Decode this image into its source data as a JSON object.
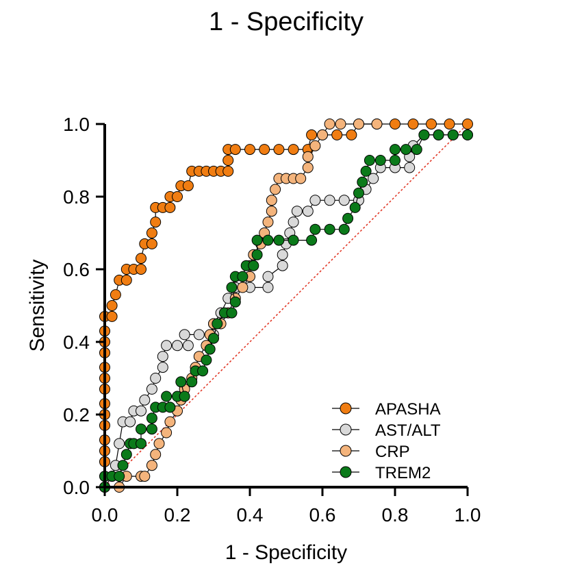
{
  "chart_data": {
    "type": "line",
    "title": "1 - Specificity",
    "xlabel": "1 - Specificity",
    "ylabel": "Sensitivity",
    "xlim": [
      0,
      1
    ],
    "ylim": [
      0,
      1
    ],
    "x_ticks": [
      "0.0",
      "0.2",
      "0.4",
      "0.6",
      "0.8",
      "1.0"
    ],
    "y_ticks": [
      "0.0",
      "0.2",
      "0.4",
      "0.6",
      "0.8",
      "1.0"
    ],
    "grid": false,
    "legend_position": "bottom-right",
    "reference_line": {
      "from": [
        0,
        0
      ],
      "to": [
        1,
        1
      ],
      "color": "#e0301e",
      "style": "dotted"
    },
    "series": [
      {
        "name": "APASHA",
        "color": "#f07d12",
        "points": [
          [
            0,
            0
          ],
          [
            0,
            0.03
          ],
          [
            0,
            0.07
          ],
          [
            0,
            0.1
          ],
          [
            0,
            0.13
          ],
          [
            0,
            0.17
          ],
          [
            0,
            0.2
          ],
          [
            0,
            0.23
          ],
          [
            0,
            0.27
          ],
          [
            0,
            0.3
          ],
          [
            0,
            0.33
          ],
          [
            0,
            0.37
          ],
          [
            0,
            0.4
          ],
          [
            0,
            0.43
          ],
          [
            0,
            0.47
          ],
          [
            0.02,
            0.47
          ],
          [
            0.02,
            0.5
          ],
          [
            0.03,
            0.53
          ],
          [
            0.04,
            0.57
          ],
          [
            0.06,
            0.57
          ],
          [
            0.06,
            0.6
          ],
          [
            0.08,
            0.6
          ],
          [
            0.1,
            0.6
          ],
          [
            0.1,
            0.63
          ],
          [
            0.11,
            0.67
          ],
          [
            0.13,
            0.67
          ],
          [
            0.13,
            0.7
          ],
          [
            0.14,
            0.73
          ],
          [
            0.14,
            0.77
          ],
          [
            0.16,
            0.77
          ],
          [
            0.18,
            0.77
          ],
          [
            0.18,
            0.8
          ],
          [
            0.2,
            0.8
          ],
          [
            0.21,
            0.83
          ],
          [
            0.23,
            0.83
          ],
          [
            0.24,
            0.87
          ],
          [
            0.26,
            0.87
          ],
          [
            0.28,
            0.87
          ],
          [
            0.3,
            0.87
          ],
          [
            0.32,
            0.87
          ],
          [
            0.34,
            0.87
          ],
          [
            0.34,
            0.9
          ],
          [
            0.34,
            0.93
          ],
          [
            0.36,
            0.93
          ],
          [
            0.4,
            0.93
          ],
          [
            0.44,
            0.93
          ],
          [
            0.48,
            0.93
          ],
          [
            0.52,
            0.93
          ],
          [
            0.56,
            0.93
          ],
          [
            0.57,
            0.97
          ],
          [
            0.6,
            0.97
          ],
          [
            0.64,
            0.97
          ],
          [
            0.68,
            0.97
          ],
          [
            0.7,
            1.0
          ],
          [
            0.75,
            1.0
          ],
          [
            0.8,
            1.0
          ],
          [
            0.85,
            1.0
          ],
          [
            0.9,
            1.0
          ],
          [
            0.95,
            1.0
          ],
          [
            1.0,
            1.0
          ]
        ]
      },
      {
        "name": "AST/ALT",
        "color": "#d9d9d9",
        "points": [
          [
            0,
            0
          ],
          [
            0.02,
            0.03
          ],
          [
            0.03,
            0.06
          ],
          [
            0.04,
            0.12
          ],
          [
            0.05,
            0.18
          ],
          [
            0.07,
            0.18
          ],
          [
            0.08,
            0.21
          ],
          [
            0.1,
            0.21
          ],
          [
            0.11,
            0.24
          ],
          [
            0.13,
            0.27
          ],
          [
            0.14,
            0.3
          ],
          [
            0.16,
            0.33
          ],
          [
            0.16,
            0.36
          ],
          [
            0.17,
            0.39
          ],
          [
            0.2,
            0.39
          ],
          [
            0.23,
            0.39
          ],
          [
            0.22,
            0.42
          ],
          [
            0.26,
            0.42
          ],
          [
            0.3,
            0.42
          ],
          [
            0.3,
            0.45
          ],
          [
            0.32,
            0.48
          ],
          [
            0.34,
            0.52
          ],
          [
            0.36,
            0.55
          ],
          [
            0.4,
            0.55
          ],
          [
            0.45,
            0.55
          ],
          [
            0.45,
            0.58
          ],
          [
            0.49,
            0.61
          ],
          [
            0.49,
            0.64
          ],
          [
            0.5,
            0.67
          ],
          [
            0.51,
            0.7
          ],
          [
            0.52,
            0.73
          ],
          [
            0.53,
            0.76
          ],
          [
            0.56,
            0.76
          ],
          [
            0.58,
            0.79
          ],
          [
            0.62,
            0.79
          ],
          [
            0.66,
            0.79
          ],
          [
            0.7,
            0.79
          ],
          [
            0.72,
            0.82
          ],
          [
            0.74,
            0.85
          ],
          [
            0.76,
            0.88
          ],
          [
            0.8,
            0.88
          ],
          [
            0.84,
            0.88
          ],
          [
            0.84,
            0.91
          ],
          [
            0.85,
            0.94
          ],
          [
            0.88,
            0.97
          ],
          [
            0.92,
            0.97
          ],
          [
            0.96,
            0.97
          ],
          [
            1.0,
            0.97
          ]
        ]
      },
      {
        "name": "CRP",
        "color": "#f4b47c",
        "points": [
          [
            0,
            0
          ],
          [
            0.04,
            0
          ],
          [
            0.06,
            0.03
          ],
          [
            0.1,
            0.03
          ],
          [
            0.11,
            0.03
          ],
          [
            0.13,
            0.06
          ],
          [
            0.14,
            0.09
          ],
          [
            0.15,
            0.12
          ],
          [
            0.17,
            0.15
          ],
          [
            0.18,
            0.18
          ],
          [
            0.2,
            0.21
          ],
          [
            0.21,
            0.24
          ],
          [
            0.22,
            0.27
          ],
          [
            0.24,
            0.3
          ],
          [
            0.25,
            0.33
          ],
          [
            0.26,
            0.36
          ],
          [
            0.28,
            0.39
          ],
          [
            0.29,
            0.42
          ],
          [
            0.3,
            0.45
          ],
          [
            0.32,
            0.45
          ],
          [
            0.34,
            0.48
          ],
          [
            0.36,
            0.52
          ],
          [
            0.38,
            0.55
          ],
          [
            0.4,
            0.58
          ],
          [
            0.4,
            0.61
          ],
          [
            0.41,
            0.64
          ],
          [
            0.43,
            0.67
          ],
          [
            0.44,
            0.7
          ],
          [
            0.45,
            0.73
          ],
          [
            0.46,
            0.76
          ],
          [
            0.46,
            0.79
          ],
          [
            0.47,
            0.82
          ],
          [
            0.48,
            0.85
          ],
          [
            0.5,
            0.85
          ],
          [
            0.52,
            0.85
          ],
          [
            0.54,
            0.85
          ],
          [
            0.56,
            0.88
          ],
          [
            0.56,
            0.91
          ],
          [
            0.58,
            0.94
          ],
          [
            0.6,
            0.97
          ],
          [
            0.62,
            1.0
          ],
          [
            0.65,
            1.0
          ],
          [
            0.7,
            1.0
          ],
          [
            0.75,
            1.0
          ]
        ]
      },
      {
        "name": "TREM2",
        "color": "#0b7a1a",
        "points": [
          [
            0,
            0
          ],
          [
            0,
            0.03
          ],
          [
            0.02,
            0.03
          ],
          [
            0.04,
            0.03
          ],
          [
            0.05,
            0.06
          ],
          [
            0.06,
            0.09
          ],
          [
            0.07,
            0.12
          ],
          [
            0.08,
            0.12
          ],
          [
            0.1,
            0.12
          ],
          [
            0.1,
            0.16
          ],
          [
            0.13,
            0.16
          ],
          [
            0.13,
            0.19
          ],
          [
            0.14,
            0.22
          ],
          [
            0.16,
            0.22
          ],
          [
            0.18,
            0.22
          ],
          [
            0.17,
            0.25
          ],
          [
            0.2,
            0.25
          ],
          [
            0.22,
            0.25
          ],
          [
            0.21,
            0.29
          ],
          [
            0.24,
            0.29
          ],
          [
            0.25,
            0.32
          ],
          [
            0.27,
            0.32
          ],
          [
            0.28,
            0.35
          ],
          [
            0.29,
            0.38
          ],
          [
            0.3,
            0.41
          ],
          [
            0.31,
            0.45
          ],
          [
            0.33,
            0.48
          ],
          [
            0.35,
            0.48
          ],
          [
            0.36,
            0.51
          ],
          [
            0.35,
            0.55
          ],
          [
            0.36,
            0.58
          ],
          [
            0.38,
            0.58
          ],
          [
            0.39,
            0.61
          ],
          [
            0.41,
            0.61
          ],
          [
            0.42,
            0.64
          ],
          [
            0.42,
            0.68
          ],
          [
            0.45,
            0.68
          ],
          [
            0.48,
            0.68
          ],
          [
            0.52,
            0.68
          ],
          [
            0.57,
            0.68
          ],
          [
            0.58,
            0.71
          ],
          [
            0.62,
            0.71
          ],
          [
            0.66,
            0.71
          ],
          [
            0.67,
            0.74
          ],
          [
            0.69,
            0.77
          ],
          [
            0.7,
            0.81
          ],
          [
            0.71,
            0.84
          ],
          [
            0.72,
            0.87
          ],
          [
            0.73,
            0.9
          ],
          [
            0.76,
            0.9
          ],
          [
            0.8,
            0.9
          ],
          [
            0.8,
            0.93
          ],
          [
            0.83,
            0.93
          ],
          [
            0.86,
            0.93
          ],
          [
            0.88,
            0.97
          ],
          [
            0.92,
            0.97
          ],
          [
            0.96,
            0.97
          ],
          [
            1.0,
            0.97
          ]
        ]
      }
    ]
  }
}
